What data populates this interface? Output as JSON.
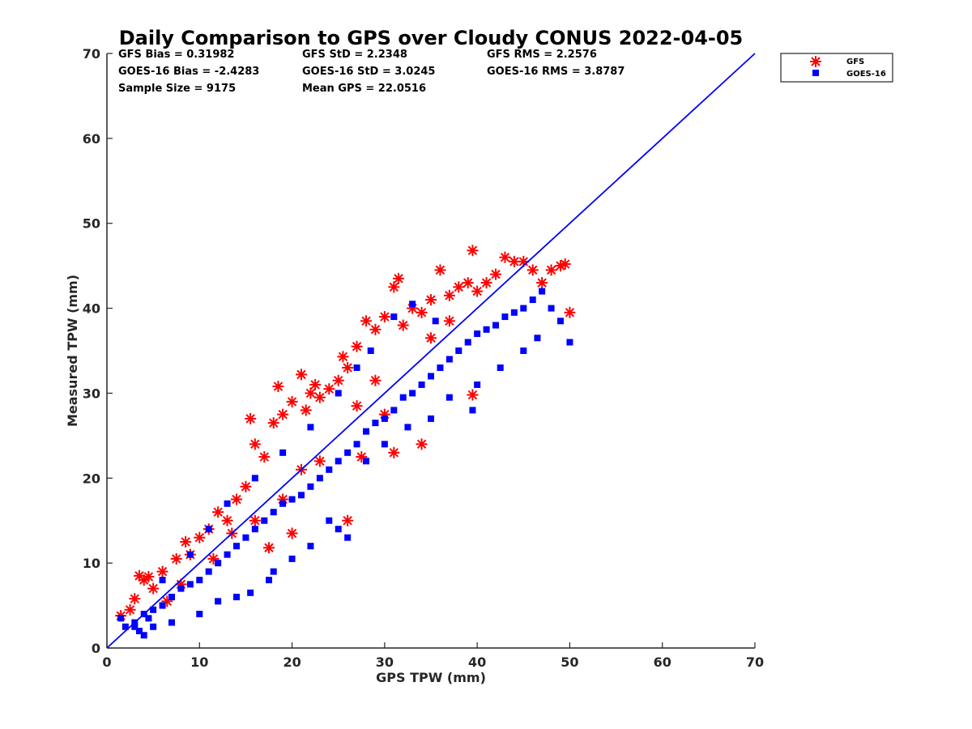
{
  "chart_data": {
    "type": "scatter",
    "title": "Daily Comparison to GPS over Cloudy CONUS 2022-04-05",
    "xlabel": "GPS TPW (mm)",
    "ylabel": "Measured TPW (mm)",
    "xlim": [
      0,
      70
    ],
    "ylim": [
      0,
      70
    ],
    "xticks": [
      "0",
      "10",
      "20",
      "30",
      "40",
      "50",
      "60",
      "70"
    ],
    "yticks": [
      "0",
      "10",
      "20",
      "30",
      "40",
      "50",
      "60",
      "70"
    ],
    "grid": false,
    "legend_position": "outside top-right",
    "stats": [
      [
        "GFS Bias = 0.31982",
        "GFS StD = 2.2348",
        "GFS RMS = 2.2576"
      ],
      [
        "GOES-16 Bias = -2.4283",
        "GOES-16 StD = 3.0245",
        "GOES-16 RMS = 3.8787"
      ],
      [
        "Sample Size = 9175",
        "Mean GPS = 22.0516"
      ]
    ],
    "reference_line": {
      "x": [
        0,
        70
      ],
      "y": [
        0,
        70
      ],
      "color": "#0000ff"
    },
    "series": [
      {
        "name": "GFS",
        "marker": "asterisk",
        "color": "#ff0000",
        "points": [
          [
            1.5,
            3.8
          ],
          [
            2.5,
            4.5
          ],
          [
            3.0,
            5.8
          ],
          [
            3.5,
            8.5
          ],
          [
            4.0,
            8.0
          ],
          [
            4.5,
            8.4
          ],
          [
            5.0,
            7.0
          ],
          [
            6.0,
            9.0
          ],
          [
            7.5,
            10.5
          ],
          [
            8.5,
            12.5
          ],
          [
            9.0,
            11.0
          ],
          [
            10.0,
            13.0
          ],
          [
            11.0,
            14.0
          ],
          [
            12.0,
            16.0
          ],
          [
            13.0,
            15.0
          ],
          [
            14.0,
            17.5
          ],
          [
            15.0,
            19.0
          ],
          [
            15.5,
            27.0
          ],
          [
            16.0,
            24.0
          ],
          [
            17.0,
            22.5
          ],
          [
            18.0,
            26.5
          ],
          [
            18.5,
            30.8
          ],
          [
            19.0,
            27.5
          ],
          [
            20.0,
            29.0
          ],
          [
            21.0,
            32.2
          ],
          [
            21.5,
            28.0
          ],
          [
            22.0,
            30.0
          ],
          [
            22.5,
            31.0
          ],
          [
            23.0,
            29.5
          ],
          [
            24.0,
            30.5
          ],
          [
            25.0,
            31.5
          ],
          [
            25.5,
            34.3
          ],
          [
            26.0,
            33.0
          ],
          [
            27.0,
            35.5
          ],
          [
            28.0,
            38.5
          ],
          [
            29.0,
            37.5
          ],
          [
            30.0,
            39.0
          ],
          [
            31.0,
            42.5
          ],
          [
            31.5,
            43.5
          ],
          [
            32.0,
            38.0
          ],
          [
            33.0,
            40.0
          ],
          [
            34.0,
            39.5
          ],
          [
            35.0,
            41.0
          ],
          [
            36.0,
            44.5
          ],
          [
            37.0,
            41.5
          ],
          [
            38.0,
            42.5
          ],
          [
            39.0,
            43.0
          ],
          [
            39.5,
            46.8
          ],
          [
            40.0,
            42.0
          ],
          [
            41.0,
            43.0
          ],
          [
            42.0,
            44.0
          ],
          [
            43.0,
            46.0
          ],
          [
            44.0,
            45.5
          ],
          [
            45.0,
            45.5
          ],
          [
            46.0,
            44.5
          ],
          [
            47.0,
            43.0
          ],
          [
            48.0,
            44.5
          ],
          [
            49.0,
            45.0
          ],
          [
            49.5,
            45.2
          ],
          [
            50.0,
            39.5
          ],
          [
            20.0,
            13.5
          ],
          [
            17.5,
            11.8
          ],
          [
            26.0,
            15.0
          ],
          [
            27.5,
            22.5
          ],
          [
            30.0,
            27.5
          ],
          [
            31.0,
            23.0
          ],
          [
            34.0,
            24.0
          ],
          [
            39.5,
            29.8
          ],
          [
            13.5,
            13.5
          ],
          [
            21.0,
            21.0
          ],
          [
            6.5,
            5.5
          ],
          [
            8.0,
            7.5
          ],
          [
            11.5,
            10.5
          ],
          [
            16.0,
            15.0
          ],
          [
            19.0,
            17.5
          ],
          [
            23.0,
            22.0
          ],
          [
            27.0,
            28.5
          ],
          [
            29.0,
            31.5
          ],
          [
            35.0,
            36.5
          ],
          [
            37.0,
            38.5
          ]
        ]
      },
      {
        "name": "GOES-16",
        "marker": "square",
        "color": "#0000ff",
        "points": [
          [
            1.5,
            3.5
          ],
          [
            2.0,
            2.5
          ],
          [
            3.0,
            3.0
          ],
          [
            3.5,
            2.0
          ],
          [
            4.0,
            4.0
          ],
          [
            4.5,
            3.5
          ],
          [
            5.0,
            4.5
          ],
          [
            6.0,
            5.0
          ],
          [
            7.0,
            6.0
          ],
          [
            8.0,
            7.0
          ],
          [
            9.0,
            7.5
          ],
          [
            10.0,
            8.0
          ],
          [
            11.0,
            9.0
          ],
          [
            12.0,
            10.0
          ],
          [
            13.0,
            11.0
          ],
          [
            14.0,
            12.0
          ],
          [
            15.0,
            13.0
          ],
          [
            15.5,
            6.5
          ],
          [
            16.0,
            14.0
          ],
          [
            17.0,
            15.0
          ],
          [
            18.0,
            16.0
          ],
          [
            19.0,
            17.0
          ],
          [
            20.0,
            17.5
          ],
          [
            21.0,
            18.0
          ],
          [
            22.0,
            19.0
          ],
          [
            23.0,
            20.0
          ],
          [
            24.0,
            21.0
          ],
          [
            25.0,
            22.0
          ],
          [
            26.0,
            23.0
          ],
          [
            27.0,
            24.0
          ],
          [
            28.0,
            25.5
          ],
          [
            29.0,
            26.5
          ],
          [
            30.0,
            27.0
          ],
          [
            31.0,
            28.0
          ],
          [
            32.0,
            29.5
          ],
          [
            33.0,
            30.0
          ],
          [
            34.0,
            31.0
          ],
          [
            35.0,
            32.0
          ],
          [
            36.0,
            33.0
          ],
          [
            37.0,
            34.0
          ],
          [
            38.0,
            35.0
          ],
          [
            39.0,
            36.0
          ],
          [
            40.0,
            37.0
          ],
          [
            41.0,
            37.5
          ],
          [
            42.0,
            38.0
          ],
          [
            43.0,
            39.0
          ],
          [
            44.0,
            39.5
          ],
          [
            45.0,
            40.0
          ],
          [
            46.0,
            41.0
          ],
          [
            47.0,
            42.0
          ],
          [
            48.0,
            40.0
          ],
          [
            49.0,
            38.5
          ],
          [
            50.0,
            36.0
          ],
          [
            46.5,
            36.5
          ],
          [
            45.0,
            35.0
          ],
          [
            42.5,
            33.0
          ],
          [
            40.0,
            31.0
          ],
          [
            39.5,
            28.0
          ],
          [
            37.0,
            29.5
          ],
          [
            35.0,
            27.0
          ],
          [
            32.5,
            26.0
          ],
          [
            30.0,
            24.0
          ],
          [
            28.0,
            22.0
          ],
          [
            26.0,
            13.0
          ],
          [
            25.0,
            14.0
          ],
          [
            24.0,
            15.0
          ],
          [
            22.0,
            12.0
          ],
          [
            20.0,
            10.5
          ],
          [
            18.0,
            9.0
          ],
          [
            17.5,
            8.0
          ],
          [
            14.0,
            6.0
          ],
          [
            12.0,
            5.5
          ],
          [
            10.0,
            4.0
          ],
          [
            7.0,
            3.0
          ],
          [
            5.0,
            2.5
          ],
          [
            4.0,
            1.5
          ],
          [
            3.0,
            2.5
          ],
          [
            33.0,
            40.5
          ],
          [
            31.0,
            39.0
          ],
          [
            28.5,
            35.0
          ],
          [
            27.0,
            33.0
          ],
          [
            25.0,
            30.0
          ],
          [
            22.0,
            26.0
          ],
          [
            19.0,
            23.0
          ],
          [
            16.0,
            20.0
          ],
          [
            13.0,
            17.0
          ],
          [
            11.0,
            14.0
          ],
          [
            9.0,
            11.0
          ],
          [
            6.0,
            8.0
          ],
          [
            35.5,
            38.5
          ]
        ]
      }
    ]
  }
}
